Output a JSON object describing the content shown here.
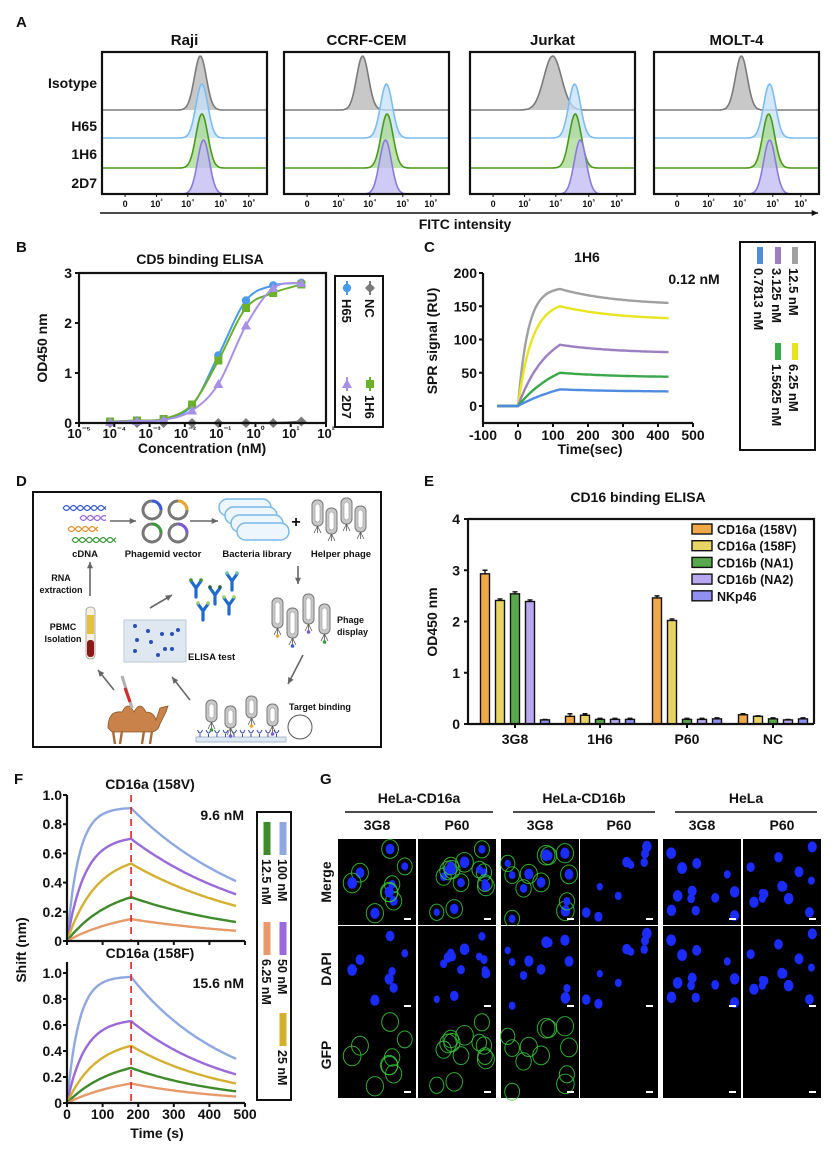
{
  "panel_labels": [
    "A",
    "B",
    "C",
    "D",
    "E",
    "F",
    "G"
  ],
  "chart_data": [
    {
      "panel": "A",
      "type": "area",
      "cell_lines": [
        "Raji",
        "CCRF-CEM",
        "Jurkat",
        "MOLT-4"
      ],
      "row_labels": [
        "Isotype",
        "H65",
        "1H6",
        "2D7"
      ],
      "x_tick_labels": [
        "0",
        "10³",
        "10⁴",
        "10⁵",
        "10⁶"
      ],
      "xlabel": "FITC intensity",
      "x_scale": "log",
      "peak_log10_fitc": {
        "Raji": [
          4.4,
          4.45,
          4.45,
          4.5
        ],
        "CCRF-CEM": [
          3.77,
          4.53,
          4.55,
          4.5
        ],
        "Jurkat": [
          3.9,
          4.6,
          4.62,
          4.78
        ],
        "MOLT-4": [
          4.05,
          4.95,
          4.92,
          4.95
        ]
      },
      "row_colors": {
        "line": [
          "#7a7a7a",
          "#7cbcee",
          "#4a9a1a",
          "#8a7ae0"
        ],
        "fill": [
          "#b5b5b5",
          "#c4e0f8",
          "#a8d890",
          "#c0b8f4"
        ]
      }
    },
    {
      "panel": "B",
      "type": "scatter",
      "title": "CD5 binding ELISA",
      "xlabel": "Concentration (nM)",
      "ylabel": "OD450 nm",
      "x_scale": "log",
      "xlim": [
        1e-05,
        100
      ],
      "ylim": [
        0,
        3
      ],
      "x_tick_labels": [
        "10⁻⁵",
        "10⁻⁴",
        "10⁻³",
        "10⁻²",
        "10⁻¹",
        "10⁰",
        "10¹",
        "10²"
      ],
      "y_ticks": [
        0,
        1,
        2,
        3
      ],
      "legend_position": "right",
      "x": [
        7.6e-05,
        0.00044,
        0.0025,
        0.016,
        0.089,
        0.54,
        3.2,
        20
      ],
      "series": [
        {
          "name": "H65",
          "marker": "circle",
          "color": "#4a9ae8",
          "values": [
            0.02,
            0.05,
            0.07,
            0.35,
            1.35,
            2.45,
            2.75,
            2.8
          ]
        },
        {
          "name": "NC",
          "marker": "diamond",
          "color": "#7a7a7a",
          "values": [
            0.0,
            0.0,
            0.0,
            0.0,
            0.0,
            0.0,
            0.0,
            0.03
          ]
        },
        {
          "name": "1H6",
          "marker": "square",
          "color": "#6ab02a",
          "values": [
            0.03,
            0.05,
            0.08,
            0.37,
            1.25,
            2.3,
            2.6,
            2.77
          ]
        },
        {
          "name": "2D7",
          "marker": "triangle",
          "color": "#a890e8",
          "values": [
            0.02,
            0.04,
            0.06,
            0.25,
            0.78,
            1.95,
            2.7,
            2.8
          ]
        }
      ]
    },
    {
      "panel": "C",
      "type": "line",
      "title": "1H6",
      "annotation": "0.12 nM",
      "xlabel": "Time(sec)",
      "ylabel": "SPR signal (RU)",
      "xlim": [
        -100,
        500
      ],
      "ylim": [
        -25,
        200
      ],
      "x_ticks": [
        -100,
        0,
        100,
        200,
        300,
        400,
        500
      ],
      "y_ticks": [
        0,
        50,
        100,
        150,
        200
      ],
      "legend_position": "right",
      "injection_start_sec": 0,
      "association_end_sec": 120,
      "time_range_sec": [
        -60,
        430
      ],
      "series": [
        {
          "name": "12.5 nM",
          "color": "#a0a0a0",
          "value_at_120s": 176,
          "value_at_430s": 155
        },
        {
          "name": "6.25 nM",
          "color": "#e8e41e",
          "value_at_120s": 150,
          "value_at_430s": 132
        },
        {
          "name": "3.125 nM",
          "color": "#9b7fc0",
          "value_at_120s": 92,
          "value_at_430s": 81
        },
        {
          "name": "1.5625 nM",
          "color": "#3aa84a",
          "value_at_120s": 50,
          "value_at_430s": 44
        },
        {
          "name": "0.7813 nM",
          "color": "#4f8ce0",
          "value_at_120s": 25,
          "value_at_430s": 22
        }
      ]
    },
    {
      "panel": "E",
      "type": "bar",
      "title": "CD16 binding ELISA",
      "ylabel": "OD450 nm",
      "ylim": [
        0,
        4
      ],
      "y_ticks": [
        0,
        1,
        2,
        3,
        4
      ],
      "categories": [
        "3G8",
        "1H6",
        "P60",
        "NC"
      ],
      "legend_position": "top-right",
      "series": [
        {
          "name": "CD16a (158V)",
          "color": "#f0a848",
          "values": [
            2.93,
            0.15,
            2.46,
            0.18
          ],
          "errors": [
            0.07,
            0.05,
            0.04,
            0.02
          ]
        },
        {
          "name": "CD16a (158F)",
          "color": "#e8d464",
          "values": [
            2.41,
            0.17,
            2.02,
            0.15
          ],
          "errors": [
            0.03,
            0.03,
            0.03,
            0.01
          ]
        },
        {
          "name": "CD16b (NA1)",
          "color": "#5aa84e",
          "values": [
            2.54,
            0.09,
            0.09,
            0.1
          ],
          "errors": [
            0.04,
            0.02,
            0.02,
            0.02
          ]
        },
        {
          "name": "CD16b (NA2)",
          "color": "#b8a8f0",
          "values": [
            2.39,
            0.09,
            0.09,
            0.08
          ],
          "errors": [
            0.03,
            0.02,
            0.02,
            0.01
          ]
        },
        {
          "name": "NKp46",
          "color": "#9090f0",
          "values": [
            0.08,
            0.09,
            0.1,
            0.1
          ],
          "errors": [
            0.01,
            0.02,
            0.02,
            0.02
          ]
        }
      ]
    },
    {
      "panel": "F",
      "type": "line",
      "xlabel": "Time (s)",
      "ylabel": "Shift (nm)",
      "xlim": [
        0,
        500
      ],
      "ylim": [
        0,
        1.0
      ],
      "x_ticks": [
        0,
        100,
        200,
        300,
        400,
        500
      ],
      "y_tick_labels": [
        "0",
        "0.2",
        "0.4",
        "0.6",
        "0.8",
        "1.0"
      ],
      "association_end_sec": 180,
      "end_sec": 475,
      "legend_position": "right",
      "series": [
        {
          "name": "100 nM",
          "color": "#8fa8e0"
        },
        {
          "name": "50 nM",
          "color": "#9a6ad8"
        },
        {
          "name": "25 nM",
          "color": "#d4b030"
        },
        {
          "name": "12.5 nM",
          "color": "#3f8a2a"
        },
        {
          "name": "6.25 nM",
          "color": "#e69a6a"
        }
      ],
      "subplots": [
        {
          "title": "CD16a (158V)",
          "annotation": "9.6 nM",
          "value_at_180s": [
            0.91,
            0.7,
            0.53,
            0.3,
            0.15
          ],
          "value_at_475s": [
            0.41,
            0.32,
            0.24,
            0.13,
            0.07
          ]
        },
        {
          "title": "CD16a (158F)",
          "annotation": "15.6 nM",
          "value_at_180s": [
            0.97,
            0.63,
            0.44,
            0.27,
            0.15
          ],
          "value_at_475s": [
            0.34,
            0.22,
            0.15,
            0.09,
            0.05
          ]
        }
      ]
    }
  ],
  "diagram_D": {
    "cdna": "cDNA",
    "phagemid": "Phagemid vector",
    "bacteria": "Bacteria library",
    "plus": "+",
    "helper": "Helper phage",
    "rna_1": "RNA",
    "rna_2": "extraction",
    "pbmc_1": "PBMC",
    "pbmc_2": "Isolation",
    "elisa": "ELISA test",
    "display_1": "Phage",
    "display_2": "display",
    "target": "Target binding"
  },
  "microscopy_G": {
    "groups": [
      "HeLa-CD16a",
      "HeLa-CD16b",
      "HeLa"
    ],
    "columns": [
      "3G8",
      "P60",
      "3G8",
      "P60",
      "3G8",
      "P60"
    ],
    "rows": [
      "Merge",
      "DAPI",
      "GFP"
    ],
    "gfp_positive": [
      true,
      true,
      true,
      false,
      false,
      false
    ],
    "colors": {
      "nucleus": "#1a2cff",
      "membrane": "#3ac83a"
    }
  }
}
